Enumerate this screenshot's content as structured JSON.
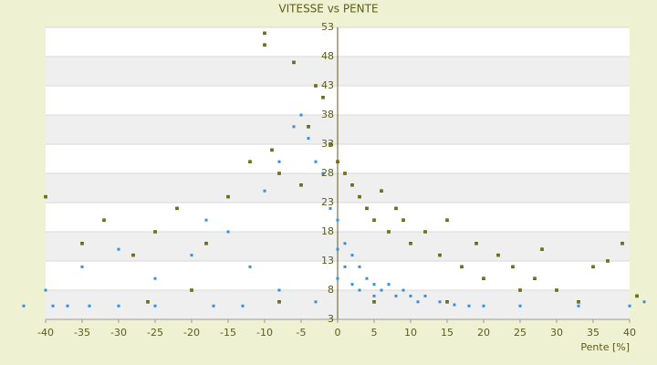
{
  "chart_data": {
    "type": "scatter",
    "title": "VITESSE vs PENTE",
    "x_label": "Pente [%]",
    "xlim": [
      -40,
      40
    ],
    "xticks": [
      -40,
      -35,
      -30,
      -25,
      -20,
      -15,
      -10,
      -5,
      0,
      5,
      10,
      15,
      20,
      25,
      30,
      35,
      40
    ],
    "ylim": [
      3,
      53
    ],
    "yticks": [
      3,
      8,
      13,
      18,
      23,
      28,
      33,
      38,
      43,
      48,
      53
    ],
    "grid": true,
    "series": [
      {
        "color": "#7a7a00",
        "x": [
          -40,
          -35,
          -32,
          -28,
          -25,
          -22,
          -20,
          -18,
          -15,
          -12,
          -10,
          -10,
          -9,
          -8,
          -6,
          -5,
          -4,
          -3,
          -2,
          -1,
          0,
          1,
          2,
          3,
          4,
          5,
          6,
          7,
          8,
          9,
          10,
          12,
          14,
          15,
          17,
          19,
          20,
          22,
          24,
          25,
          27,
          28,
          30,
          33,
          35,
          37,
          39,
          41,
          -26,
          -8,
          5,
          15
        ],
        "y": [
          24,
          16,
          20,
          14,
          18,
          22,
          8,
          16,
          24,
          30,
          52,
          50,
          32,
          28,
          47,
          26,
          36,
          43,
          41,
          33,
          30,
          28,
          26,
          24,
          22,
          20,
          25,
          18,
          22,
          20,
          16,
          18,
          14,
          20,
          12,
          16,
          10,
          14,
          12,
          8,
          10,
          15,
          8,
          6,
          12,
          13,
          16,
          7,
          6,
          6,
          6,
          6
        ]
      },
      {
        "color": "#3a8fd8",
        "x": [
          -43,
          -39,
          -37,
          -34,
          -30,
          -25,
          -40,
          -35,
          -30,
          -25,
          -20,
          -18,
          -15,
          -12,
          -10,
          -8,
          -6,
          -5,
          -4,
          -3,
          -2,
          -1,
          0,
          0,
          0,
          1,
          1,
          2,
          2,
          3,
          3,
          4,
          5,
          5,
          6,
          7,
          8,
          9,
          10,
          11,
          12,
          14,
          16,
          18,
          20,
          -17,
          -13,
          -8,
          -3,
          25,
          33,
          40,
          42
        ],
        "y": [
          5.3,
          5.3,
          5.3,
          5.3,
          5.3,
          5.3,
          8,
          12,
          15,
          10,
          14,
          20,
          18,
          12,
          25,
          30,
          36,
          38,
          34,
          30,
          28,
          22,
          20,
          15,
          10,
          16,
          12,
          14,
          9,
          12,
          8,
          10,
          9,
          7,
          8,
          9,
          7,
          8,
          7,
          6,
          7,
          6,
          5.5,
          5.3,
          5.3,
          5.3,
          5.3,
          8,
          6,
          5.3,
          5.3,
          5.3,
          6
        ]
      }
    ]
  }
}
